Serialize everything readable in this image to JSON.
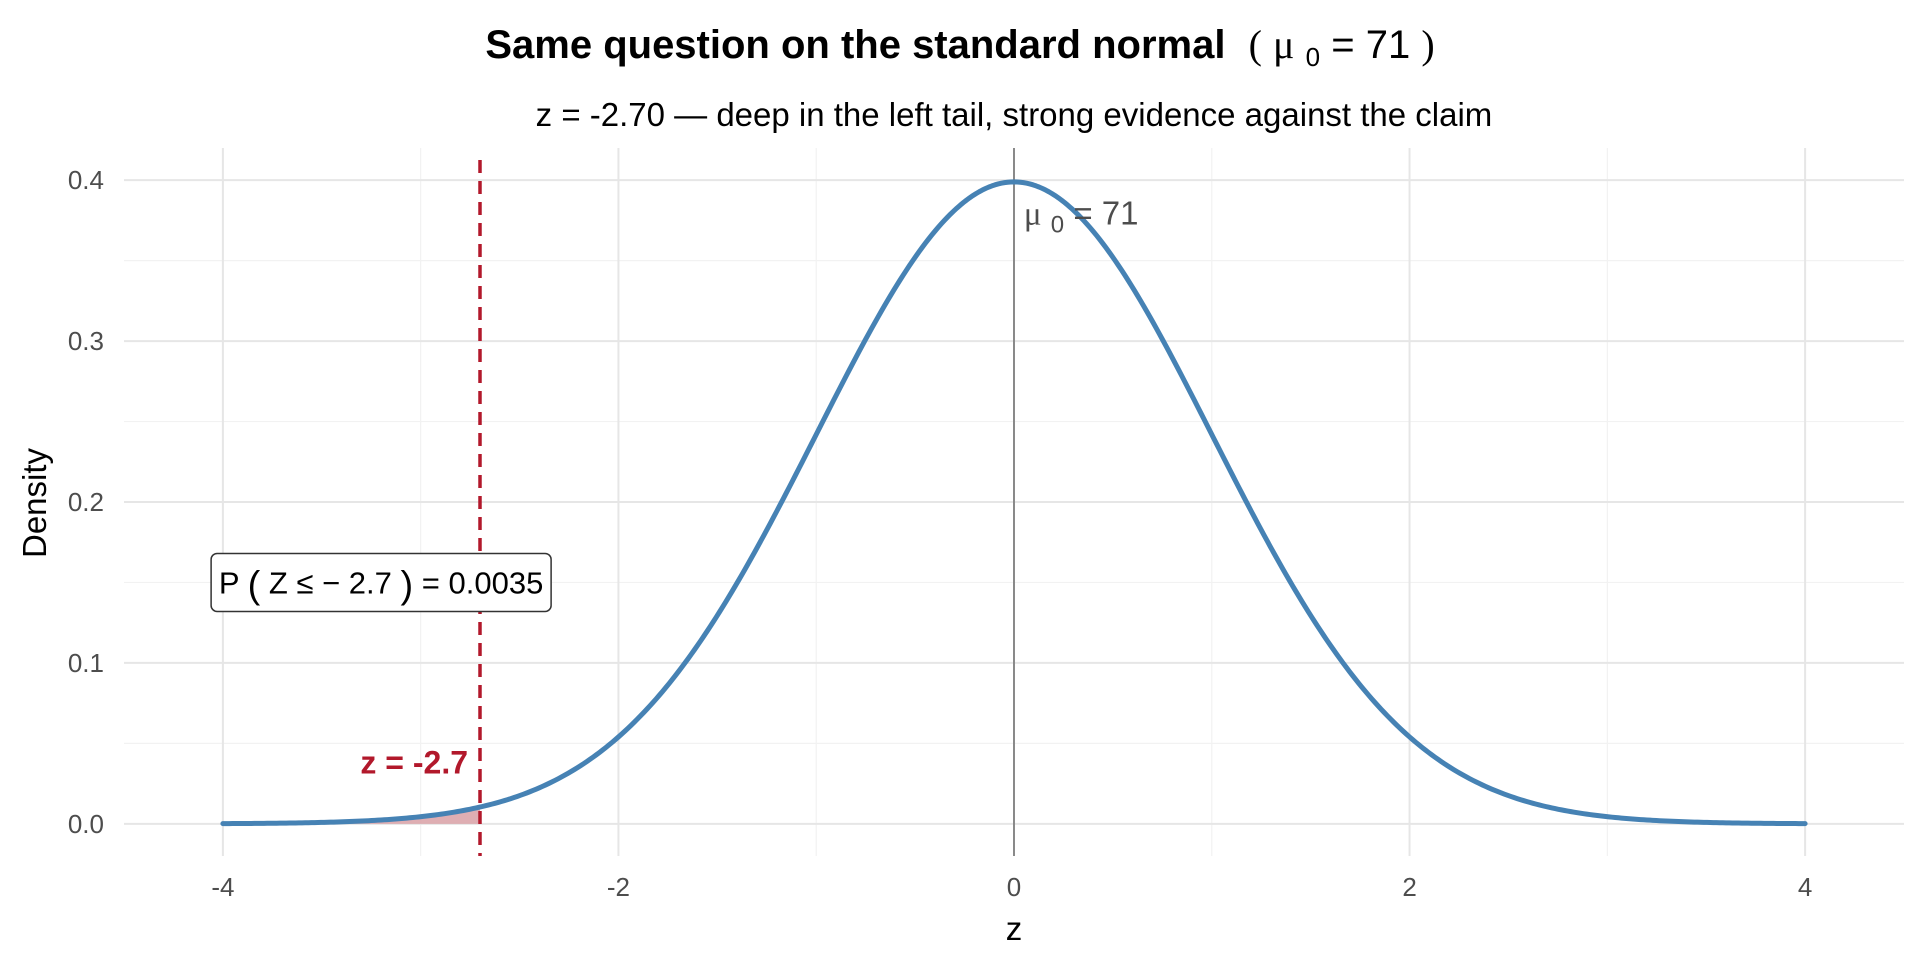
{
  "chart_data": {
    "type": "area",
    "title": {
      "main": "Same question on the standard normal",
      "open_paren": "(",
      "mu_symbol": "μ",
      "mu_subscript": "0",
      "mu_value": " = 71",
      "close_paren": ")"
    },
    "subtitle": "z = -2.70 — deep in the left tail, strong evidence against the claim",
    "xlabel": "z",
    "ylabel": "Density",
    "xlim": [
      -4.5,
      4.5
    ],
    "ylim": [
      -0.02,
      0.42
    ],
    "x_ticks": [
      -4,
      -2,
      0,
      2,
      4
    ],
    "x_tick_labels": [
      "-4",
      "-2",
      "0",
      "2",
      "4"
    ],
    "y_ticks": [
      0.0,
      0.1,
      0.2,
      0.3,
      0.4
    ],
    "y_tick_labels": [
      "0.0",
      "0.1",
      "0.2",
      "0.3",
      "0.4"
    ],
    "grid": true,
    "series": [
      {
        "distribution": "standard normal density",
        "x_range": [
          -4,
          4
        ],
        "color": "#4682b4",
        "sample_points": [
          {
            "x": -4,
            "y": 0.0001
          },
          {
            "x": -3,
            "y": 0.0044
          },
          {
            "x": -2.7,
            "y": 0.0104
          },
          {
            "x": -2,
            "y": 0.054
          },
          {
            "x": -1,
            "y": 0.242
          },
          {
            "x": 0,
            "y": 0.3989
          },
          {
            "x": 1,
            "y": 0.242
          },
          {
            "x": 2,
            "y": 0.054
          },
          {
            "x": 3,
            "y": 0.0044
          },
          {
            "x": 4,
            "y": 0.0001
          }
        ]
      }
    ],
    "shaded_region": {
      "from": -4,
      "to": -2.7,
      "color": "#d9a0a6"
    },
    "reference_lines": {
      "observed_z": {
        "x": -2.7,
        "color": "#b2182b",
        "style": "dashed"
      },
      "null_mean": {
        "x": 0,
        "color": "#7f7f7f",
        "style": "solid"
      }
    },
    "annotations": {
      "z_label": {
        "text": "z = -2.7",
        "x": -2.7,
        "y": 0.038,
        "color": "#b2182b"
      },
      "mu_label": {
        "symbol": "μ",
        "subscript": "0",
        "rest": " = 71",
        "x": 0.03,
        "y": 0.38
      },
      "probability_box": {
        "prefix": "P",
        "open": "(",
        "body": "Z ≤ − 2.7",
        "close": ")",
        "equals": " = 0.0035",
        "x": -3.2,
        "y": 0.15
      }
    }
  }
}
